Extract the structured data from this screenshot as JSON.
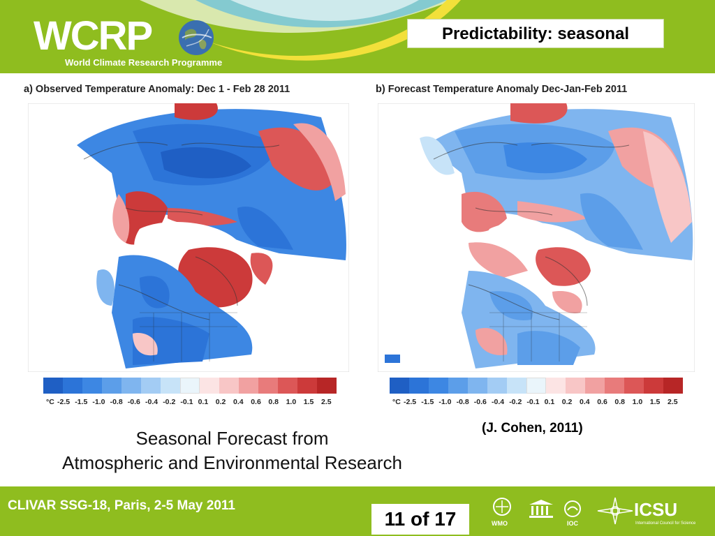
{
  "header": {
    "logo_text": "WCRP",
    "logo_subtitle": "World Climate Research Programme",
    "slide_title": "Predictability: seasonal"
  },
  "panels": {
    "a": {
      "title": "a) Observed Temperature Anomaly: Dec 1 - Feb 28 2011",
      "scale_unit": "°C",
      "scale_ticks": [
        "-2.5",
        "-1.5",
        "-1.0",
        "-0.8",
        "-0.6",
        "-0.4",
        "-0.2",
        "-0.1",
        "0.1",
        "0.2",
        "0.4",
        "0.6",
        "0.8",
        "1.0",
        "1.5",
        "2.5"
      ]
    },
    "b": {
      "title": "b) Forecast Temperature Anomaly Dec-Jan-Feb 2011",
      "scale_unit": "°C",
      "scale_ticks": [
        "-2.5",
        "-1.5",
        "-1.0",
        "-0.8",
        "-0.6",
        "-0.4",
        "-0.2",
        "-0.1",
        "0.1",
        "0.2",
        "0.4",
        "0.6",
        "0.8",
        "1.0",
        "1.5",
        "2.5"
      ]
    }
  },
  "colorbar_colors": [
    "#1f5fc4",
    "#2c74d8",
    "#3d87e3",
    "#5c9ee9",
    "#7fb5ef",
    "#a3ccf4",
    "#c7e3f8",
    "#eaf5fb",
    "#fce4e4",
    "#f8c6c6",
    "#f1a1a1",
    "#e87b7b",
    "#dc5757",
    "#cc3a3a",
    "#b72626"
  ],
  "caption": {
    "line1": "Seasonal Forecast from",
    "line2": "Atmospheric and Environmental Research"
  },
  "citation": "(J. Cohen, 2011)",
  "footer": {
    "meeting": "CLIVAR SSG-18, Paris, 2-5 May 2011",
    "page": "11 of 17",
    "org_labels": [
      "WMO",
      "IOC",
      "ICSU",
      "International Council for Science"
    ]
  },
  "colors": {
    "brand_green": "#8fbd1f",
    "warm": "#d94848",
    "cold": "#2f78d6"
  }
}
